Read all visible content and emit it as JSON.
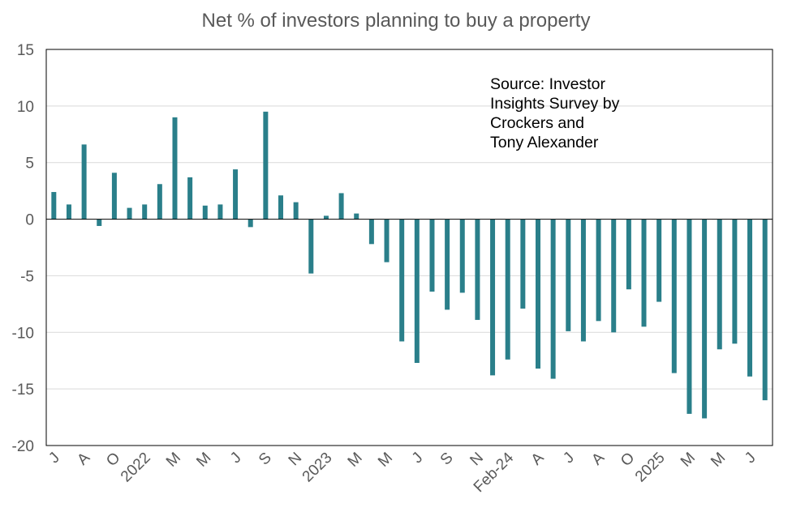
{
  "colors": {
    "bar": "#2a7f8a",
    "grid": "#d9d9d9",
    "axis_text": "#595959",
    "frame": "#000000"
  },
  "chart_data": {
    "type": "bar",
    "title": "Net % of investors planning to buy a property",
    "xlabel": "",
    "ylabel": "",
    "ylim": [
      -20,
      15
    ],
    "yticks": [
      15,
      10,
      5,
      0,
      -5,
      -10,
      -15,
      -20
    ],
    "grid": true,
    "annotation": [
      "Source: Investor",
      "Insights Survey by",
      "Crockers and",
      "Tony Alexander"
    ],
    "x_tick_labels": [
      {
        "index": 0,
        "label": "J"
      },
      {
        "index": 2,
        "label": "A"
      },
      {
        "index": 4,
        "label": "O"
      },
      {
        "index": 6,
        "label": "2022"
      },
      {
        "index": 8,
        "label": "M"
      },
      {
        "index": 10,
        "label": "M"
      },
      {
        "index": 12,
        "label": "J"
      },
      {
        "index": 14,
        "label": "S"
      },
      {
        "index": 16,
        "label": "N"
      },
      {
        "index": 18,
        "label": "2023"
      },
      {
        "index": 20,
        "label": "M"
      },
      {
        "index": 22,
        "label": "M"
      },
      {
        "index": 24,
        "label": "J"
      },
      {
        "index": 26,
        "label": "S"
      },
      {
        "index": 28,
        "label": "N"
      },
      {
        "index": 30,
        "label": "Feb-24"
      },
      {
        "index": 32,
        "label": "A"
      },
      {
        "index": 34,
        "label": "J"
      },
      {
        "index": 36,
        "label": "A"
      },
      {
        "index": 38,
        "label": "O"
      },
      {
        "index": 40,
        "label": "2025"
      },
      {
        "index": 42,
        "label": "M"
      },
      {
        "index": 44,
        "label": "M"
      },
      {
        "index": 46,
        "label": "J"
      }
    ],
    "series": [
      {
        "values": [
          2.4,
          1.3,
          6.6,
          -0.6,
          4.1,
          1.0,
          1.3,
          3.1,
          9.0,
          3.7,
          1.2,
          1.3,
          4.4,
          -0.7,
          9.5,
          2.1,
          1.5,
          -4.8,
          0.3,
          2.3,
          0.5,
          -2.2,
          -3.8,
          -10.8,
          -12.7,
          -6.4,
          -8.0,
          -6.5,
          -8.9,
          -13.8,
          -12.4,
          -7.9,
          -13.2,
          -14.1,
          -9.9,
          -10.8,
          -9.0,
          -10.0,
          -6.2,
          -9.5,
          -7.3,
          -13.6,
          -17.2,
          -17.6,
          -11.5,
          -11.0,
          -13.9,
          -16.0
        ]
      }
    ]
  }
}
